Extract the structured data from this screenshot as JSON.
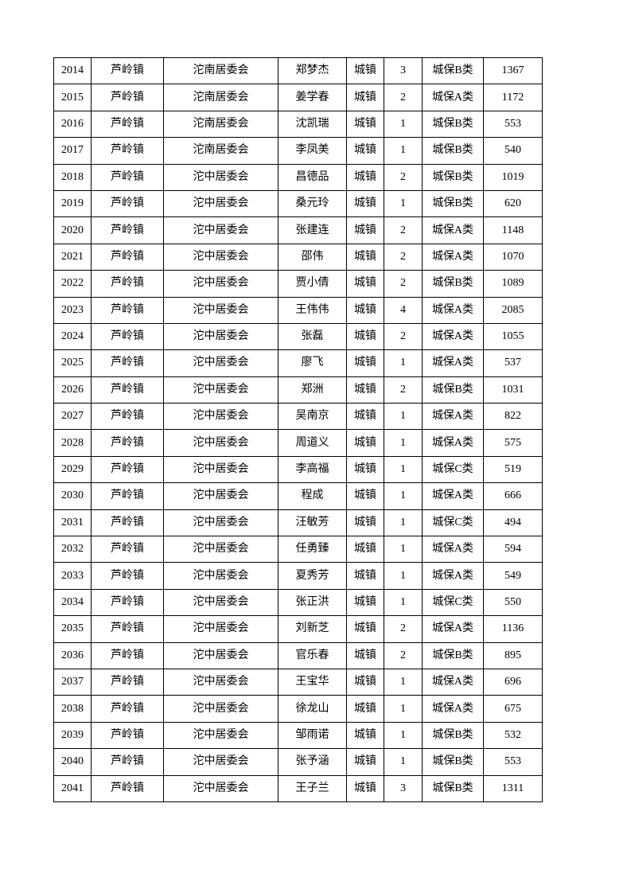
{
  "table": {
    "rows": [
      [
        "2014",
        "芦岭镇",
        "沱南居委会",
        "郑梦杰",
        "城镇",
        "3",
        "城保B类",
        "1367"
      ],
      [
        "2015",
        "芦岭镇",
        "沱南居委会",
        "姜学春",
        "城镇",
        "2",
        "城保A类",
        "1172"
      ],
      [
        "2016",
        "芦岭镇",
        "沱南居委会",
        "沈凯瑞",
        "城镇",
        "1",
        "城保B类",
        "553"
      ],
      [
        "2017",
        "芦岭镇",
        "沱南居委会",
        "李凤美",
        "城镇",
        "1",
        "城保B类",
        "540"
      ],
      [
        "2018",
        "芦岭镇",
        "沱中居委会",
        "昌德品",
        "城镇",
        "2",
        "城保B类",
        "1019"
      ],
      [
        "2019",
        "芦岭镇",
        "沱中居委会",
        "桑元玲",
        "城镇",
        "1",
        "城保B类",
        "620"
      ],
      [
        "2020",
        "芦岭镇",
        "沱中居委会",
        "张建连",
        "城镇",
        "2",
        "城保A类",
        "1148"
      ],
      [
        "2021",
        "芦岭镇",
        "沱中居委会",
        "邵伟",
        "城镇",
        "2",
        "城保A类",
        "1070"
      ],
      [
        "2022",
        "芦岭镇",
        "沱中居委会",
        "贾小倩",
        "城镇",
        "2",
        "城保B类",
        "1089"
      ],
      [
        "2023",
        "芦岭镇",
        "沱中居委会",
        "王伟伟",
        "城镇",
        "4",
        "城保A类",
        "2085"
      ],
      [
        "2024",
        "芦岭镇",
        "沱中居委会",
        "张磊",
        "城镇",
        "2",
        "城保A类",
        "1055"
      ],
      [
        "2025",
        "芦岭镇",
        "沱中居委会",
        "廖飞",
        "城镇",
        "1",
        "城保A类",
        "537"
      ],
      [
        "2026",
        "芦岭镇",
        "沱中居委会",
        "郑洲",
        "城镇",
        "2",
        "城保B类",
        "1031"
      ],
      [
        "2027",
        "芦岭镇",
        "沱中居委会",
        "吴南京",
        "城镇",
        "1",
        "城保A类",
        "822"
      ],
      [
        "2028",
        "芦岭镇",
        "沱中居委会",
        "周道义",
        "城镇",
        "1",
        "城保A类",
        "575"
      ],
      [
        "2029",
        "芦岭镇",
        "沱中居委会",
        "李高福",
        "城镇",
        "1",
        "城保C类",
        "519"
      ],
      [
        "2030",
        "芦岭镇",
        "沱中居委会",
        "程成",
        "城镇",
        "1",
        "城保A类",
        "666"
      ],
      [
        "2031",
        "芦岭镇",
        "沱中居委会",
        "汪敏芳",
        "城镇",
        "1",
        "城保C类",
        "494"
      ],
      [
        "2032",
        "芦岭镇",
        "沱中居委会",
        "任勇臻",
        "城镇",
        "1",
        "城保A类",
        "594"
      ],
      [
        "2033",
        "芦岭镇",
        "沱中居委会",
        "夏秀芳",
        "城镇",
        "1",
        "城保A类",
        "549"
      ],
      [
        "2034",
        "芦岭镇",
        "沱中居委会",
        "张正洪",
        "城镇",
        "1",
        "城保C类",
        "550"
      ],
      [
        "2035",
        "芦岭镇",
        "沱中居委会",
        "刘新芝",
        "城镇",
        "2",
        "城保A类",
        "1136"
      ],
      [
        "2036",
        "芦岭镇",
        "沱中居委会",
        "官乐春",
        "城镇",
        "2",
        "城保B类",
        "895"
      ],
      [
        "2037",
        "芦岭镇",
        "沱中居委会",
        "王宝华",
        "城镇",
        "1",
        "城保A类",
        "696"
      ],
      [
        "2038",
        "芦岭镇",
        "沱中居委会",
        "徐龙山",
        "城镇",
        "1",
        "城保A类",
        "675"
      ],
      [
        "2039",
        "芦岭镇",
        "沱中居委会",
        "邹雨诺",
        "城镇",
        "1",
        "城保B类",
        "532"
      ],
      [
        "2040",
        "芦岭镇",
        "沱中居委会",
        "张予涵",
        "城镇",
        "1",
        "城保B类",
        "553"
      ],
      [
        "2041",
        "芦岭镇",
        "沱中居委会",
        "王子兰",
        "城镇",
        "3",
        "城保B类",
        "1311"
      ]
    ]
  }
}
